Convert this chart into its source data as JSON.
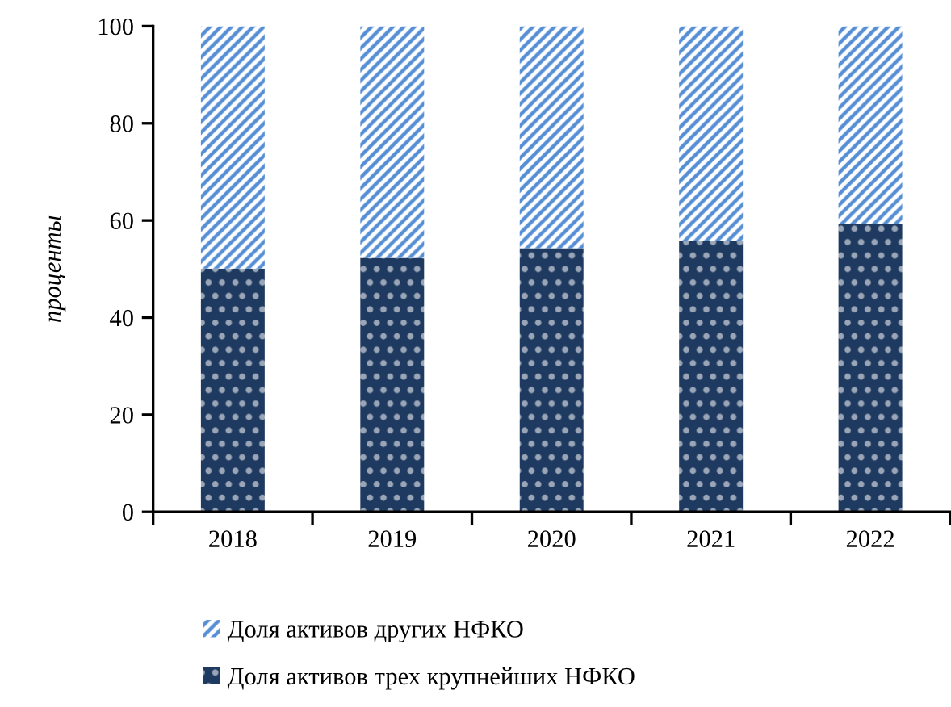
{
  "chart_data": {
    "type": "bar",
    "stacked": true,
    "ylabel": "проценты",
    "categories": [
      "2018",
      "2019",
      "2020",
      "2021",
      "2022"
    ],
    "series": [
      {
        "name": "Доля активов трех крупнейших НФКО",
        "color": "#1f3a60",
        "values": [
          50.1,
          52.3,
          54.3,
          55.7,
          59.2
        ]
      },
      {
        "name": "Доля активов других НФКО",
        "color": "#558ed5",
        "values": [
          49.9,
          47.7,
          45.7,
          44.3,
          40.8
        ]
      }
    ],
    "ylim": [
      0,
      100
    ],
    "yticks": [
      0,
      20,
      40,
      60,
      80,
      100
    ],
    "grid": false,
    "legend": "bottom"
  }
}
